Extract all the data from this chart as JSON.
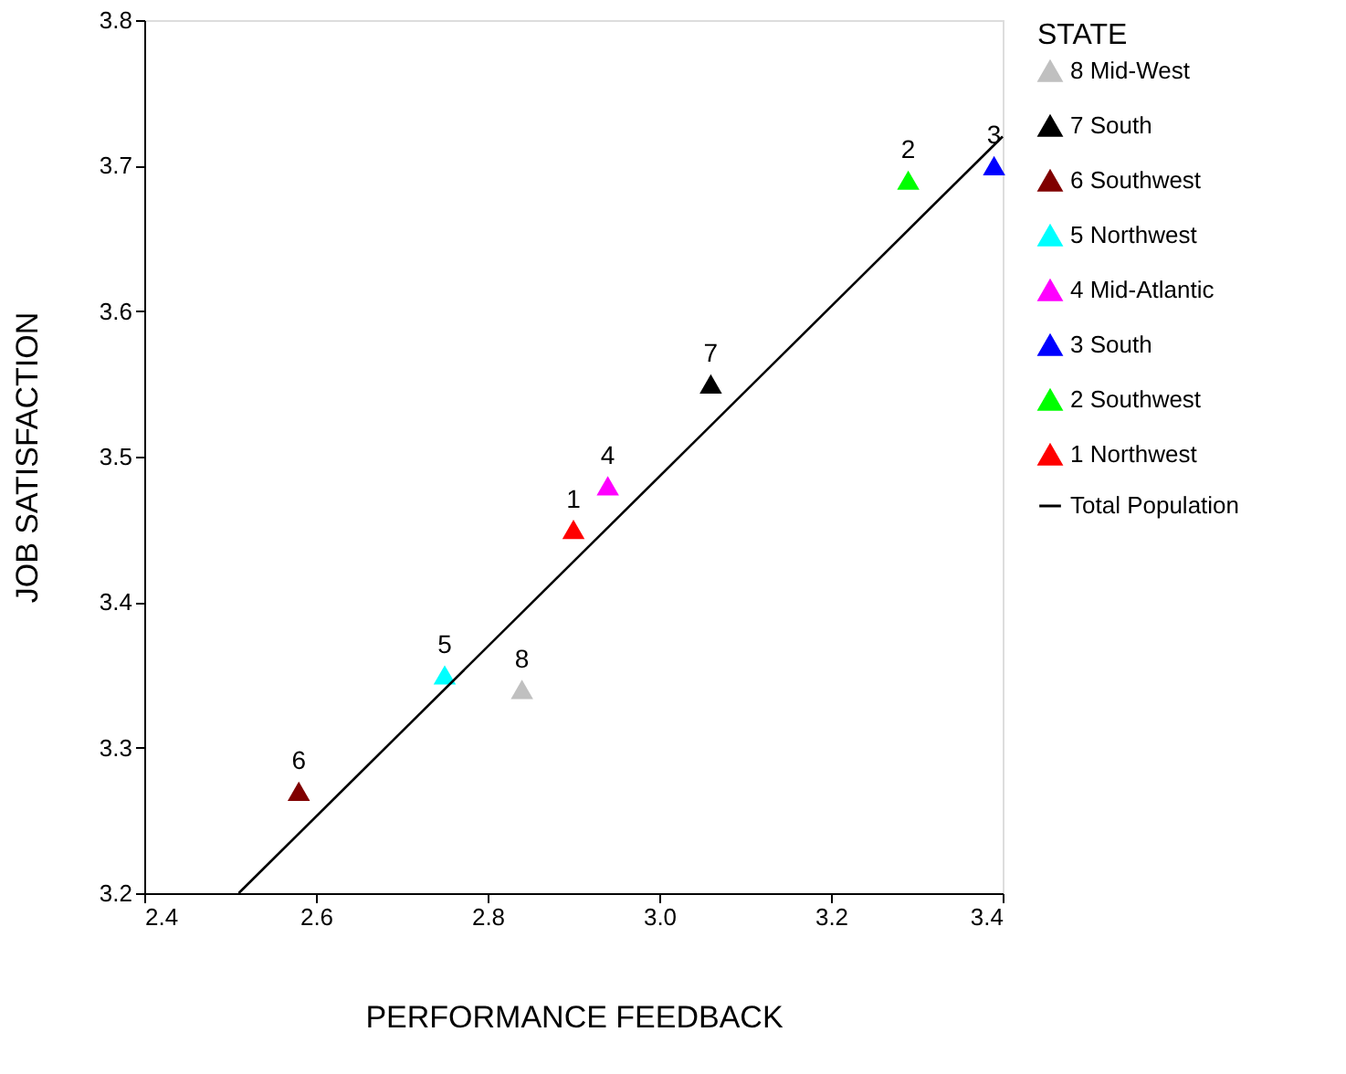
{
  "chart_data": {
    "type": "scatter",
    "xlabel": "PERFORMANCE FEEDBACK",
    "ylabel": "JOB SATISFACTION",
    "legend_title": "STATE",
    "xlim": [
      2.4,
      3.4
    ],
    "xticks": [
      2.4,
      2.6,
      2.8,
      {
        "value": 3,
        "label": "3.0"
      },
      3.2,
      3.4
    ],
    "ylim": [
      3.2,
      3.8
    ],
    "yticks": [
      3.2,
      3.3,
      3.4,
      3.5,
      3.6,
      3.7,
      3.8
    ],
    "grid": false,
    "legend": "right",
    "marker": "triangle",
    "series": [
      {
        "name": "8 Mid-West",
        "color": "#c0c0c0",
        "x": [
          2.84
        ],
        "values": [
          3.34
        ]
      },
      {
        "name": "7 South",
        "color": "#000000",
        "x": [
          3.06
        ],
        "values": [
          3.55
        ]
      },
      {
        "name": "6 Southwest",
        "color": "#800000",
        "x": [
          2.58
        ],
        "values": [
          3.27
        ]
      },
      {
        "name": "5 Northwest",
        "color": "#00ffff",
        "x": [
          2.75
        ],
        "values": [
          3.35
        ]
      },
      {
        "name": "4 Mid-Atlantic",
        "color": "#ff00ff",
        "x": [
          2.94
        ],
        "values": [
          3.48
        ]
      },
      {
        "name": "3 South",
        "color": "#0000ff",
        "x": [
          3.39
        ],
        "values": [
          3.7
        ]
      },
      {
        "name": "2 Southwest",
        "color": "#00ff00",
        "x": [
          3.29
        ],
        "values": [
          3.69
        ]
      },
      {
        "name": "1 Northwest",
        "color": "#ff0000",
        "x": [
          2.9
        ],
        "values": [
          3.45
        ]
      },
      {
        "name": "Total Population",
        "type": "line",
        "color": "#000000",
        "marker": "none",
        "x": [
          2.51,
          3.4
        ],
        "values": [
          3.2,
          3.72
        ]
      }
    ],
    "annotations": [
      {
        "text": "8",
        "x": 2.84,
        "y": 3.34
      },
      {
        "text": "7",
        "x": 3.06,
        "y": 3.55
      },
      {
        "text": "6",
        "x": 2.58,
        "y": 3.27
      },
      {
        "text": "5",
        "x": 2.75,
        "y": 3.35
      },
      {
        "text": "4",
        "x": 2.94,
        "y": 3.48
      },
      {
        "text": "3",
        "x": 3.39,
        "y": 3.7
      },
      {
        "text": "2",
        "x": 3.29,
        "y": 3.69
      },
      {
        "text": "1",
        "x": 2.9,
        "y": 3.45
      }
    ]
  }
}
